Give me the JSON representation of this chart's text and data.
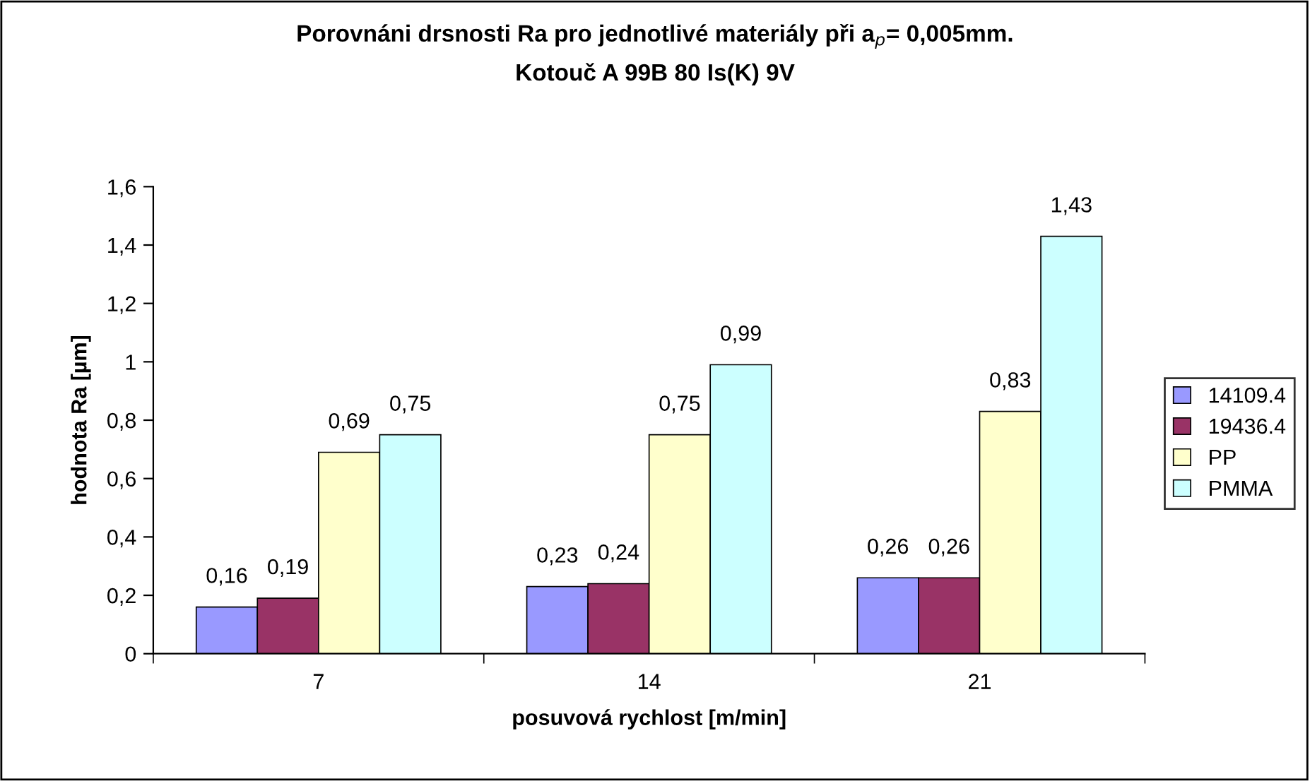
{
  "chart_data": {
    "type": "bar",
    "title": "Porovnáni drsnosti Ra pro jednotlivé materiály při a$_{p}$= 0,005mm.\nKotouč A 99B 80 Is(K) 9V",
    "xlabel": "posuvová rychlost [m/min]",
    "ylabel": "hodnota Ra [µm]",
    "categories": [
      "7",
      "14",
      "21"
    ],
    "series": [
      {
        "name": "14109.4",
        "color": "#9999ff",
        "values": [
          0.16,
          0.23,
          0.26
        ],
        "value_labels": [
          "0,16",
          "0,23",
          "0,26"
        ]
      },
      {
        "name": "19436.4",
        "color": "#993366",
        "values": [
          0.19,
          0.24,
          0.26
        ],
        "value_labels": [
          "0,19",
          "0,24",
          "0,26"
        ]
      },
      {
        "name": "PP",
        "color": "#ffffcc",
        "values": [
          0.69,
          0.75,
          0.83
        ],
        "value_labels": [
          "0,69",
          "0,75",
          "0,83"
        ]
      },
      {
        "name": "PMMA",
        "color": "#ccffff",
        "values": [
          0.75,
          0.99,
          1.43
        ],
        "value_labels": [
          "0,75",
          "0,99",
          "1,43"
        ]
      }
    ],
    "ylim": [
      0,
      1.6
    ],
    "yticks": [
      0,
      {
        "value": 0.2,
        "label": "0,2"
      },
      {
        "value": 0.4,
        "label": "0,4"
      },
      {
        "value": 0.6,
        "label": "0,6"
      },
      {
        "value": 0.8,
        "label": "0,8"
      },
      1,
      {
        "value": 1.2,
        "label": "1,2"
      },
      {
        "value": 1.4,
        "label": "1,4"
      },
      {
        "value": 1.6,
        "label": "1,6"
      }
    ],
    "legend": "right"
  }
}
